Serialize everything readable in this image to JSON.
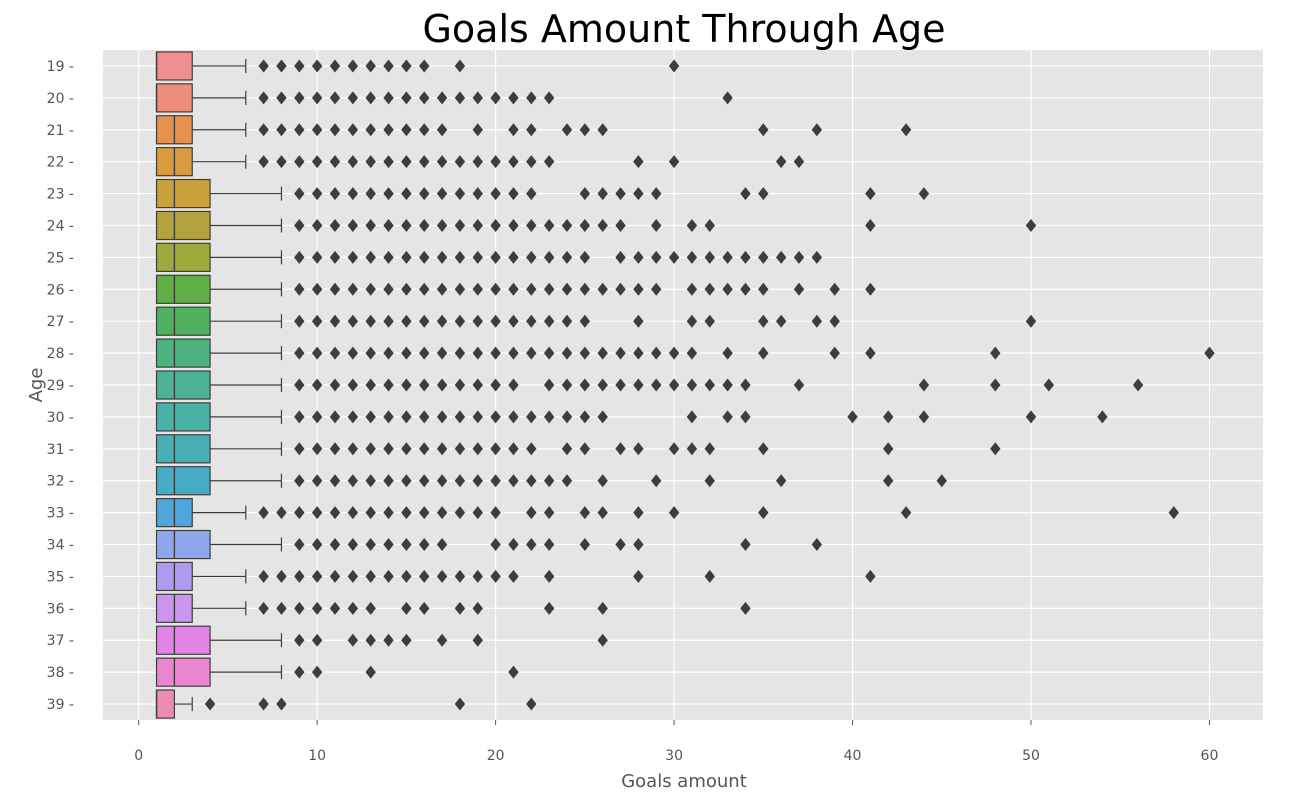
{
  "chart_data": {
    "type": "boxplot",
    "orientation": "horizontal",
    "title": "Goals Amount Through Age",
    "xlabel": "Goals amount",
    "ylabel": "Age",
    "xlim": [
      -2,
      63
    ],
    "x_ticks": [
      0,
      10,
      20,
      30,
      40,
      50,
      60
    ],
    "grid": true,
    "categories": [
      "19",
      "20",
      "21",
      "22",
      "23",
      "24",
      "25",
      "26",
      "27",
      "28",
      "29",
      "30",
      "31",
      "32",
      "33",
      "34",
      "35",
      "36",
      "37",
      "38",
      "39"
    ],
    "boxes": [
      {
        "age": "19",
        "q1": 1,
        "median": 1,
        "q3": 3,
        "whisker_low": 1,
        "whisker_high": 6,
        "color": "#f08f8f",
        "fliers": [
          7,
          8,
          9,
          10,
          11,
          12,
          13,
          14,
          15,
          16,
          18,
          30
        ]
      },
      {
        "age": "20",
        "q1": 1,
        "median": 1,
        "q3": 3,
        "whisker_low": 1,
        "whisker_high": 6,
        "color": "#ee8e7c",
        "fliers": [
          7,
          8,
          9,
          10,
          11,
          12,
          13,
          14,
          15,
          16,
          17,
          18,
          19,
          20,
          21,
          22,
          23,
          33
        ]
      },
      {
        "age": "21",
        "q1": 1,
        "median": 2,
        "q3": 3,
        "whisker_low": 1,
        "whisker_high": 6,
        "color": "#e6914f",
        "fliers": [
          7,
          8,
          9,
          10,
          11,
          12,
          13,
          14,
          15,
          16,
          17,
          19,
          21,
          22,
          24,
          25,
          26,
          35,
          38,
          43
        ]
      },
      {
        "age": "22",
        "q1": 1,
        "median": 2,
        "q3": 3,
        "whisker_low": 1,
        "whisker_high": 6,
        "color": "#d99b3f",
        "fliers": [
          7,
          8,
          9,
          10,
          11,
          12,
          13,
          14,
          15,
          16,
          17,
          18,
          19,
          20,
          21,
          22,
          23,
          28,
          30,
          36,
          37
        ]
      },
      {
        "age": "23",
        "q1": 1,
        "median": 2,
        "q3": 4,
        "whisker_low": 1,
        "whisker_high": 8,
        "color": "#c9a13c",
        "fliers": [
          9,
          10,
          11,
          12,
          13,
          14,
          15,
          16,
          17,
          18,
          19,
          20,
          21,
          22,
          25,
          26,
          27,
          28,
          29,
          34,
          35,
          41,
          44
        ]
      },
      {
        "age": "24",
        "q1": 1,
        "median": 2,
        "q3": 4,
        "whisker_low": 1,
        "whisker_high": 8,
        "color": "#b3a33c",
        "fliers": [
          9,
          10,
          11,
          12,
          13,
          14,
          15,
          16,
          17,
          18,
          19,
          20,
          21,
          22,
          23,
          24,
          25,
          26,
          27,
          29,
          31,
          32,
          41,
          50
        ]
      },
      {
        "age": "25",
        "q1": 1,
        "median": 2,
        "q3": 4,
        "whisker_low": 1,
        "whisker_high": 8,
        "color": "#9fa93c",
        "fliers": [
          9,
          10,
          11,
          12,
          13,
          14,
          15,
          16,
          17,
          18,
          19,
          20,
          21,
          22,
          23,
          24,
          25,
          27,
          28,
          29,
          30,
          31,
          32,
          33,
          34,
          35,
          36,
          37,
          38
        ]
      },
      {
        "age": "26",
        "q1": 1,
        "median": 2,
        "q3": 4,
        "whisker_low": 1,
        "whisker_high": 8,
        "color": "#5fae46",
        "fliers": [
          9,
          10,
          11,
          12,
          13,
          14,
          15,
          16,
          17,
          18,
          19,
          20,
          21,
          22,
          23,
          24,
          25,
          26,
          27,
          28,
          29,
          31,
          32,
          33,
          34,
          35,
          37,
          39,
          41
        ]
      },
      {
        "age": "27",
        "q1": 1,
        "median": 2,
        "q3": 4,
        "whisker_low": 1,
        "whisker_high": 8,
        "color": "#4fb05f",
        "fliers": [
          9,
          10,
          11,
          12,
          13,
          14,
          15,
          16,
          17,
          18,
          19,
          20,
          21,
          22,
          23,
          24,
          25,
          28,
          31,
          32,
          35,
          36,
          38,
          39,
          50
        ]
      },
      {
        "age": "28",
        "q1": 1,
        "median": 2,
        "q3": 4,
        "whisker_low": 1,
        "whisker_high": 8,
        "color": "#4cb27e",
        "fliers": [
          9,
          10,
          11,
          12,
          13,
          14,
          15,
          16,
          17,
          18,
          19,
          20,
          21,
          22,
          23,
          24,
          25,
          26,
          27,
          28,
          29,
          30,
          31,
          33,
          35,
          39,
          41,
          48,
          60
        ]
      },
      {
        "age": "29",
        "q1": 1,
        "median": 2,
        "q3": 4,
        "whisker_low": 1,
        "whisker_high": 8,
        "color": "#4bb294",
        "fliers": [
          9,
          10,
          11,
          12,
          13,
          14,
          15,
          16,
          17,
          18,
          19,
          20,
          21,
          23,
          24,
          25,
          26,
          27,
          28,
          29,
          30,
          31,
          32,
          33,
          34,
          37,
          44,
          48,
          51,
          56
        ]
      },
      {
        "age": "30",
        "q1": 1,
        "median": 2,
        "q3": 4,
        "whisker_low": 1,
        "whisker_high": 8,
        "color": "#49b1a6",
        "fliers": [
          9,
          10,
          11,
          12,
          13,
          14,
          15,
          16,
          17,
          18,
          19,
          20,
          21,
          22,
          23,
          24,
          25,
          26,
          31,
          33,
          34,
          40,
          42,
          44,
          50,
          54
        ]
      },
      {
        "age": "31",
        "q1": 1,
        "median": 2,
        "q3": 4,
        "whisker_low": 1,
        "whisker_high": 8,
        "color": "#48afb4",
        "fliers": [
          9,
          10,
          11,
          12,
          13,
          14,
          15,
          16,
          17,
          18,
          19,
          20,
          21,
          22,
          24,
          25,
          27,
          28,
          30,
          31,
          32,
          35,
          42,
          48
        ]
      },
      {
        "age": "32",
        "q1": 1,
        "median": 2,
        "q3": 4,
        "whisker_low": 1,
        "whisker_high": 8,
        "color": "#46abc4",
        "fliers": [
          9,
          10,
          11,
          12,
          13,
          14,
          15,
          16,
          17,
          18,
          19,
          20,
          21,
          22,
          23,
          24,
          26,
          29,
          32,
          36,
          42,
          45
        ]
      },
      {
        "age": "33",
        "q1": 1,
        "median": 2,
        "q3": 3,
        "whisker_low": 1,
        "whisker_high": 6,
        "color": "#4ea6db",
        "fliers": [
          7,
          8,
          9,
          10,
          11,
          12,
          13,
          14,
          15,
          16,
          17,
          18,
          19,
          20,
          22,
          23,
          25,
          26,
          28,
          30,
          35,
          43,
          58
        ]
      },
      {
        "age": "34",
        "q1": 1,
        "median": 2,
        "q3": 4,
        "whisker_low": 1,
        "whisker_high": 8,
        "color": "#8fa6ec",
        "fliers": [
          9,
          10,
          11,
          12,
          13,
          14,
          15,
          16,
          17,
          20,
          21,
          22,
          23,
          25,
          27,
          28,
          34,
          38
        ]
      },
      {
        "age": "35",
        "q1": 1,
        "median": 2,
        "q3": 3,
        "whisker_low": 1,
        "whisker_high": 6,
        "color": "#b09af0",
        "fliers": [
          7,
          8,
          9,
          10,
          11,
          12,
          13,
          14,
          15,
          16,
          17,
          18,
          19,
          20,
          21,
          23,
          28,
          32,
          41
        ]
      },
      {
        "age": "36",
        "q1": 1,
        "median": 2,
        "q3": 3,
        "whisker_low": 1,
        "whisker_high": 6,
        "color": "#c995ee",
        "fliers": [
          7,
          8,
          9,
          10,
          11,
          12,
          13,
          15,
          16,
          18,
          19,
          23,
          26,
          34
        ]
      },
      {
        "age": "37",
        "q1": 1,
        "median": 2,
        "q3": 4,
        "whisker_low": 1,
        "whisker_high": 8,
        "color": "#e283e6",
        "fliers": [
          9,
          10,
          12,
          13,
          14,
          15,
          17,
          19,
          26
        ]
      },
      {
        "age": "38",
        "q1": 1,
        "median": 2,
        "q3": 4,
        "whisker_low": 1,
        "whisker_high": 8,
        "color": "#ea86cf",
        "fliers": [
          9,
          10,
          13,
          21
        ]
      },
      {
        "age": "39",
        "q1": 1,
        "median": 1,
        "q3": 2,
        "whisker_low": 1,
        "whisker_high": 3,
        "color": "#ec8cb6",
        "fliers": [
          4,
          7,
          8,
          18,
          22
        ]
      }
    ]
  }
}
